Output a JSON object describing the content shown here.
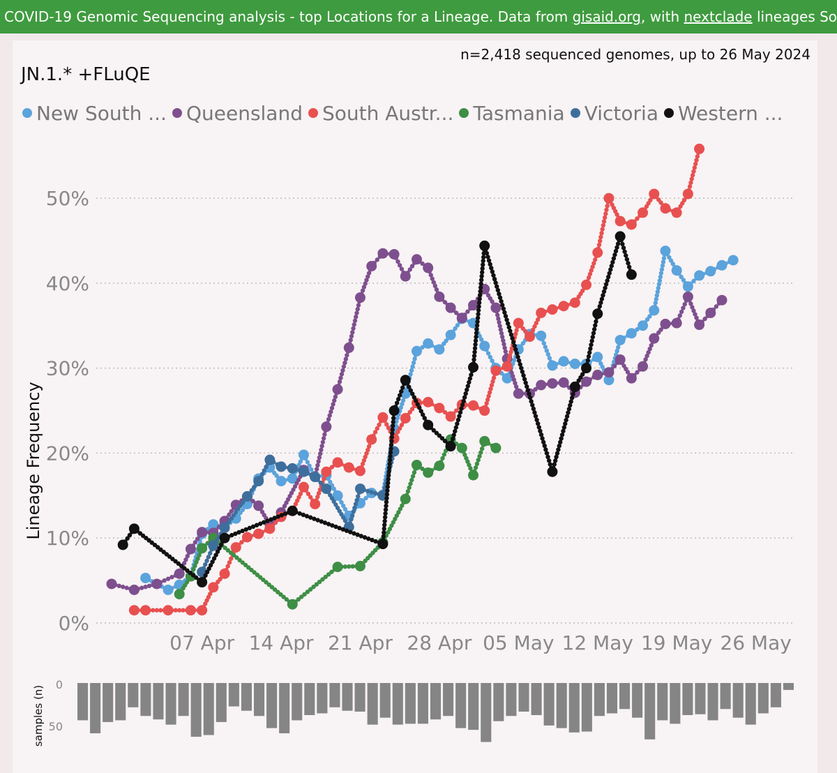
{
  "banner": {
    "text_before_1": "COVID-19 Genomic Sequencing analysis - top Locations for a Lineage. Data from ",
    "link_1": "gisaid.org",
    "text_mid": ", with ",
    "link_2": "nextclade",
    "text_after": " lineages Source file"
  },
  "subtitle": "n=2,418 sequenced genomes, up to 26 May 2024",
  "title": "JN.1.* +FLuQE",
  "colors": {
    "banner": "#3f9b3f",
    "new_south_wales": "#5ba3dc",
    "queensland": "#7e4f8e",
    "south_australia": "#e85050",
    "tasmania": "#3e8e46",
    "victoria": "#3e6f9c",
    "western_australia": "#111111"
  },
  "legend": [
    {
      "label": "New South ...",
      "color": "#5ba3dc"
    },
    {
      "label": "Queensland",
      "color": "#7e4f8e"
    },
    {
      "label": "South Austr...",
      "color": "#e85050"
    },
    {
      "label": "Tasmania",
      "color": "#3e8e46"
    },
    {
      "label": "Victoria",
      "color": "#3e6f9c"
    },
    {
      "label": "Western ...",
      "color": "#111111"
    }
  ],
  "chart_data": [
    {
      "type": "line",
      "title": "JN.1.* +FLuQE",
      "ylabel": "Lineage Frequency",
      "xlabel": "",
      "x_unit": "day of 2024",
      "xlim": [
        90,
        149
      ],
      "ylim": [
        0,
        56
      ],
      "x_ticks": [
        {
          "x": 98,
          "label": "07 Apr"
        },
        {
          "x": 105,
          "label": "14 Apr"
        },
        {
          "x": 112,
          "label": "21 Apr"
        },
        {
          "x": 119,
          "label": "28 Apr"
        },
        {
          "x": 126,
          "label": "05 May"
        },
        {
          "x": 133,
          "label": "12 May"
        },
        {
          "x": 140,
          "label": "19 May"
        },
        {
          "x": 147,
          "label": "26 May"
        }
      ],
      "y_ticks": [
        {
          "y": 0,
          "label": "0%"
        },
        {
          "y": 10,
          "label": "10%"
        },
        {
          "y": 20,
          "label": "20%"
        },
        {
          "y": 30,
          "label": "30%"
        },
        {
          "y": 40,
          "label": "40%"
        },
        {
          "y": 50,
          "label": "50%"
        }
      ],
      "series": [
        {
          "name": "New South Wales",
          "key": "new_south_wales",
          "points": [
            [
              93,
              5.3
            ],
            [
              95,
              3.9
            ],
            [
              96,
              4.5
            ],
            [
              97,
              5.5
            ],
            [
              98,
              10.5
            ],
            [
              99,
              11.6
            ],
            [
              100,
              11.3
            ],
            [
              101,
              12.3
            ],
            [
              102,
              14.0
            ],
            [
              103,
              17.0
            ],
            [
              104,
              18.3
            ],
            [
              105,
              16.7
            ],
            [
              106,
              17.0
            ],
            [
              107,
              19.8
            ],
            [
              108,
              17.2
            ],
            [
              109,
              17.4
            ],
            [
              110,
              15.0
            ],
            [
              111,
              12.6
            ],
            [
              112,
              14.1
            ],
            [
              113,
              15.3
            ],
            [
              114,
              15.1
            ],
            [
              115,
              22.9
            ],
            [
              116,
              27.0
            ],
            [
              117,
              32.0
            ],
            [
              118,
              32.9
            ],
            [
              119,
              32.2
            ],
            [
              120,
              33.9
            ],
            [
              121,
              35.8
            ],
            [
              122,
              35.3
            ],
            [
              123,
              32.6
            ],
            [
              124,
              30.0
            ],
            [
              125,
              28.8
            ],
            [
              126,
              32.2
            ],
            [
              127,
              34.0
            ],
            [
              128,
              33.8
            ],
            [
              129,
              30.3
            ],
            [
              130,
              30.8
            ],
            [
              131,
              30.5
            ],
            [
              132,
              30.5
            ],
            [
              133,
              31.3
            ],
            [
              134,
              28.6
            ],
            [
              135,
              33.3
            ],
            [
              136,
              34.1
            ],
            [
              137,
              35.0
            ],
            [
              138,
              36.8
            ],
            [
              139,
              43.8
            ],
            [
              140,
              41.5
            ],
            [
              141,
              39.6
            ],
            [
              142,
              40.9
            ],
            [
              143,
              41.4
            ],
            [
              144,
              42.1
            ],
            [
              145,
              42.7
            ]
          ]
        },
        {
          "name": "Queensland",
          "key": "queensland",
          "points": [
            [
              90,
              4.6
            ],
            [
              92,
              3.9
            ],
            [
              94,
              4.6
            ],
            [
              96,
              5.8
            ],
            [
              97,
              8.7
            ],
            [
              98,
              10.7
            ],
            [
              99,
              10.6
            ],
            [
              100,
              12.0
            ],
            [
              101,
              13.9
            ],
            [
              102,
              14.9
            ],
            [
              103,
              13.8
            ],
            [
              104,
              11.6
            ],
            [
              105,
              13.0
            ],
            [
              107,
              18.0
            ],
            [
              108,
              17.2
            ],
            [
              109,
              23.1
            ],
            [
              110,
              27.5
            ],
            [
              111,
              32.4
            ],
            [
              112,
              38.3
            ],
            [
              113,
              42.0
            ],
            [
              114,
              43.5
            ],
            [
              115,
              43.4
            ],
            [
              116,
              40.8
            ],
            [
              117,
              42.8
            ],
            [
              118,
              41.8
            ],
            [
              119,
              38.4
            ],
            [
              120,
              37.1
            ],
            [
              121,
              35.9
            ],
            [
              122,
              37.4
            ],
            [
              123,
              39.3
            ],
            [
              124,
              37.1
            ],
            [
              125,
              31.1
            ],
            [
              126,
              27.0
            ],
            [
              127,
              27.0
            ],
            [
              128,
              28.0
            ],
            [
              129,
              28.2
            ],
            [
              130,
              28.3
            ],
            [
              131,
              27.1
            ],
            [
              132,
              28.4
            ],
            [
              133,
              29.2
            ],
            [
              134,
              29.5
            ],
            [
              135,
              31.0
            ],
            [
              136,
              28.8
            ],
            [
              137,
              30.2
            ],
            [
              138,
              33.5
            ],
            [
              139,
              35.2
            ],
            [
              140,
              35.3
            ],
            [
              141,
              38.4
            ],
            [
              142,
              35.1
            ],
            [
              143,
              36.5
            ],
            [
              144,
              38.0
            ]
          ]
        },
        {
          "name": "South Australia",
          "key": "south_australia",
          "points": [
            [
              92,
              1.5
            ],
            [
              93,
              1.5
            ],
            [
              95,
              1.5
            ],
            [
              97,
              1.5
            ],
            [
              98,
              1.5
            ],
            [
              99,
              4.2
            ],
            [
              100,
              5.8
            ],
            [
              101,
              8.9
            ],
            [
              102,
              10.1
            ],
            [
              103,
              10.5
            ],
            [
              104,
              11.1
            ],
            [
              105,
              12.5
            ],
            [
              106,
              13.2
            ],
            [
              107,
              16.0
            ],
            [
              108,
              14.0
            ],
            [
              109,
              17.8
            ],
            [
              110,
              18.9
            ],
            [
              111,
              18.3
            ],
            [
              112,
              17.9
            ],
            [
              113,
              21.6
            ],
            [
              114,
              24.2
            ],
            [
              115,
              21.7
            ],
            [
              116,
              24.1
            ],
            [
              117,
              25.9
            ],
            [
              118,
              26.0
            ],
            [
              119,
              25.3
            ],
            [
              120,
              24.3
            ],
            [
              121,
              25.7
            ],
            [
              122,
              25.6
            ],
            [
              123,
              25.0
            ],
            [
              124,
              29.7
            ],
            [
              125,
              30.2
            ],
            [
              126,
              35.3
            ],
            [
              127,
              33.7
            ],
            [
              128,
              36.5
            ],
            [
              129,
              36.9
            ],
            [
              130,
              37.3
            ],
            [
              131,
              37.7
            ],
            [
              132,
              39.8
            ],
            [
              133,
              43.6
            ],
            [
              134,
              50.0
            ],
            [
              135,
              47.3
            ],
            [
              136,
              46.9
            ],
            [
              137,
              48.3
            ],
            [
              138,
              50.5
            ],
            [
              139,
              48.8
            ],
            [
              140,
              48.3
            ],
            [
              141,
              50.5
            ],
            [
              142,
              55.8
            ]
          ]
        },
        {
          "name": "Tasmania",
          "key": "tasmania",
          "points": [
            [
              96,
              3.4
            ],
            [
              97,
              5.5
            ],
            [
              98,
              8.8
            ],
            [
              99,
              10.0
            ],
            [
              106,
              2.2
            ],
            [
              110,
              6.6
            ],
            [
              112,
              6.7
            ],
            [
              114,
              9.5
            ],
            [
              116,
              14.6
            ],
            [
              117,
              18.6
            ],
            [
              118,
              17.7
            ],
            [
              119,
              18.5
            ],
            [
              120,
              21.6
            ],
            [
              121,
              20.6
            ],
            [
              122,
              17.4
            ],
            [
              123,
              21.4
            ],
            [
              124,
              20.6
            ]
          ]
        },
        {
          "name": "Victoria",
          "key": "victoria",
          "points": [
            [
              98,
              6.0
            ],
            [
              99,
              9.1
            ],
            [
              100,
              11.2
            ],
            [
              102,
              14.9
            ],
            [
              103,
              16.7
            ],
            [
              104,
              19.2
            ],
            [
              105,
              18.4
            ],
            [
              106,
              18.2
            ],
            [
              107,
              17.8
            ],
            [
              108,
              17.2
            ],
            [
              109,
              15.8
            ],
            [
              111,
              11.3
            ],
            [
              112,
              15.8
            ],
            [
              114,
              15.0
            ],
            [
              115,
              20.2
            ]
          ]
        },
        {
          "name": "Western Australia",
          "key": "western_australia",
          "points": [
            [
              91,
              9.2
            ],
            [
              92,
              11.1
            ],
            [
              98,
              4.8
            ],
            [
              100,
              10.0
            ],
            [
              106,
              13.2
            ],
            [
              114,
              9.3
            ],
            [
              115,
              25.0
            ],
            [
              116,
              28.6
            ],
            [
              118,
              23.3
            ],
            [
              120,
              20.8
            ],
            [
              122,
              30.1
            ],
            [
              123,
              44.4
            ],
            [
              129,
              17.8
            ],
            [
              131,
              27.8
            ],
            [
              132,
              30.0
            ],
            [
              133,
              36.4
            ],
            [
              135,
              45.5
            ],
            [
              136,
              41.0
            ]
          ]
        }
      ]
    },
    {
      "type": "bar",
      "ylabel": "samples (n)",
      "ylim": [
        0,
        70
      ],
      "y_ticks": [
        {
          "y": 0,
          "label": "0"
        },
        {
          "y": 50,
          "label": "50"
        }
      ],
      "orientation": "downward",
      "values": [
        43,
        58,
        45,
        43,
        28,
        38,
        42,
        48,
        38,
        62,
        60,
        45,
        27,
        32,
        38,
        52,
        58,
        43,
        37,
        35,
        28,
        32,
        33,
        48,
        40,
        48,
        47,
        47,
        42,
        38,
        52,
        54,
        68,
        44,
        38,
        33,
        37,
        49,
        52,
        57,
        56,
        38,
        35,
        30,
        40,
        65,
        43,
        47,
        37,
        36,
        43,
        30,
        40,
        48,
        35,
        28,
        8
      ]
    }
  ]
}
